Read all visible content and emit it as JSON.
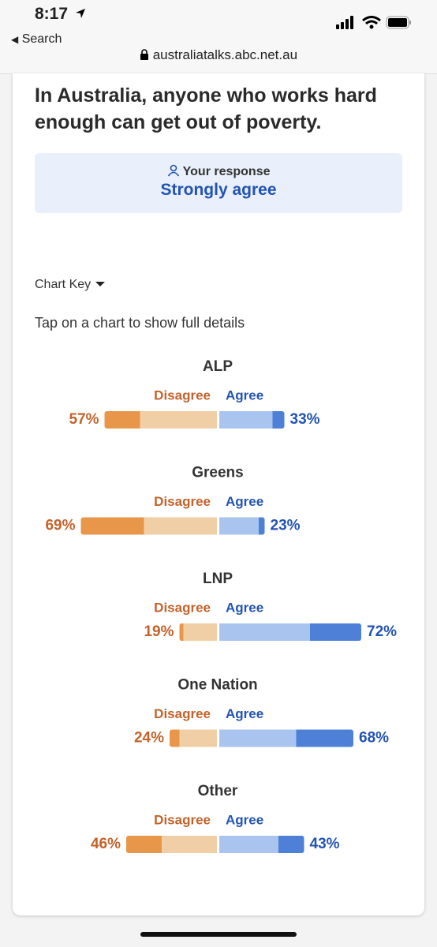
{
  "status_bar": {
    "time": "8:17",
    "back": "Search"
  },
  "browser": {
    "url": "australiatalks.abc.net.au"
  },
  "question": "In Australia, anyone who works hard enough can get out of poverty.",
  "response": {
    "caption": "Your response",
    "answer": "Strongly agree"
  },
  "chart_key": "Chart Key",
  "instruction": "Tap on a chart to show full details",
  "colors": {
    "strong_disagree": "#e8974a",
    "somewhat_disagree": "#f1cfa6",
    "somewhat_agree": "#a9c4ef",
    "strong_agree": "#4d80d6",
    "disagree_text": "#c4622a",
    "agree_text": "#2253b4"
  },
  "parties": [
    {
      "name": "ALP",
      "disagree_label": "Disagree",
      "agree_label": "Agree",
      "disagree": {
        "value": 57,
        "label": "57%",
        "strong": 18,
        "somewhat": 39
      },
      "agree": {
        "value": 33,
        "label": "33%",
        "somewhat": 27,
        "strong": 6
      }
    },
    {
      "name": "Greens",
      "disagree_label": "Disagree",
      "agree_label": "Agree",
      "disagree": {
        "value": 69,
        "label": "69%",
        "strong": 32,
        "somewhat": 37
      },
      "agree": {
        "value": 23,
        "label": "23%",
        "somewhat": 20,
        "strong": 3
      }
    },
    {
      "name": "LNP",
      "disagree_label": "Disagree",
      "agree_label": "Agree",
      "disagree": {
        "value": 19,
        "label": "19%",
        "strong": 2,
        "somewhat": 17
      },
      "agree": {
        "value": 72,
        "label": "72%",
        "somewhat": 46,
        "strong": 26
      }
    },
    {
      "name": "One Nation",
      "disagree_label": "Disagree",
      "agree_label": "Agree",
      "disagree": {
        "value": 24,
        "label": "24%",
        "strong": 5,
        "somewhat": 19
      },
      "agree": {
        "value": 68,
        "label": "68%",
        "somewhat": 39,
        "strong": 29
      }
    },
    {
      "name": "Other",
      "disagree_label": "Disagree",
      "agree_label": "Agree",
      "disagree": {
        "value": 46,
        "label": "46%",
        "strong": 18,
        "somewhat": 28
      },
      "agree": {
        "value": 43,
        "label": "43%",
        "somewhat": 30,
        "strong": 13
      }
    }
  ]
}
